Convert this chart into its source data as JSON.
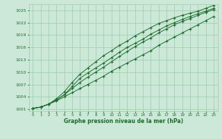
{
  "xlabel": "Graphe pression niveau de la mer (hPa)",
  "xlim": [
    -0.5,
    23.5
  ],
  "ylim": [
    1000.5,
    1026.5
  ],
  "yticks": [
    1001,
    1004,
    1007,
    1010,
    1013,
    1016,
    1019,
    1022,
    1025
  ],
  "xticks": [
    0,
    1,
    2,
    3,
    4,
    5,
    6,
    7,
    8,
    9,
    10,
    11,
    12,
    13,
    14,
    15,
    16,
    17,
    18,
    19,
    20,
    21,
    22,
    23
  ],
  "bg_color": "#cce8d8",
  "grid_color": "#99ccaa",
  "line_color": "#1a6b2a",
  "line1": [
    1001.2,
    1001.5,
    1002.2,
    1003.0,
    1004.0,
    1005.0,
    1006.0,
    1007.0,
    1008.0,
    1009.0,
    1010.2,
    1011.2,
    1012.2,
    1013.2,
    1014.2,
    1015.2,
    1016.5,
    1017.5,
    1018.5,
    1019.5,
    1020.5,
    1021.5,
    1022.5,
    1023.5
  ],
  "line2": [
    1001.2,
    1001.5,
    1002.2,
    1003.2,
    1004.5,
    1006.0,
    1007.5,
    1008.8,
    1010.0,
    1011.2,
    1012.5,
    1013.8,
    1015.0,
    1016.2,
    1017.3,
    1018.3,
    1019.5,
    1020.5,
    1021.5,
    1022.3,
    1023.0,
    1023.8,
    1024.5,
    1025.2
  ],
  "line3": [
    1001.2,
    1001.5,
    1002.2,
    1003.2,
    1004.5,
    1006.5,
    1008.5,
    1009.8,
    1011.0,
    1012.2,
    1013.5,
    1014.8,
    1016.0,
    1017.0,
    1018.0,
    1019.2,
    1020.2,
    1021.2,
    1022.0,
    1022.8,
    1023.5,
    1024.2,
    1024.8,
    1025.5
  ],
  "line4": [
    1001.2,
    1001.5,
    1002.2,
    1003.5,
    1005.2,
    1007.5,
    1009.5,
    1011.0,
    1012.5,
    1014.0,
    1015.2,
    1016.5,
    1017.5,
    1018.8,
    1019.8,
    1020.8,
    1021.8,
    1022.5,
    1023.2,
    1023.8,
    1024.3,
    1024.8,
    1025.5,
    1026.2
  ]
}
